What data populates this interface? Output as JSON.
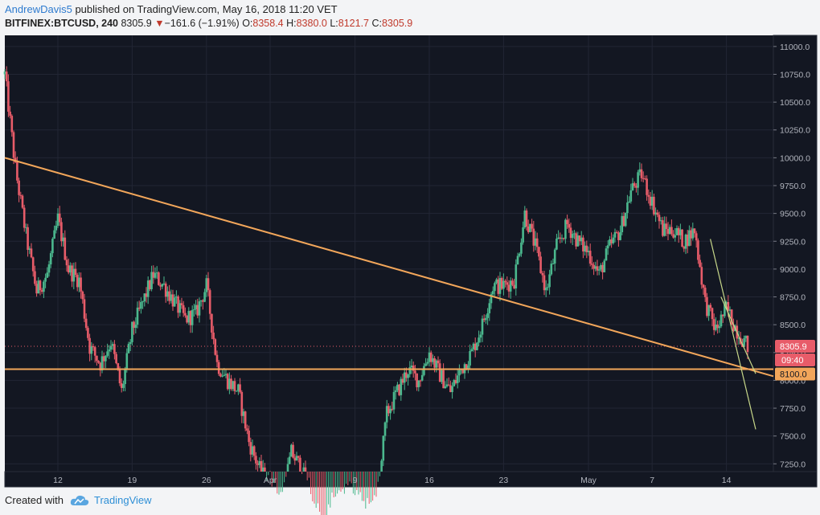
{
  "header": {
    "author": "AndrewDavis5",
    "published_text": " published on TradingView.com, May 16, 2018 11:20 VET",
    "symbol": "BITFINEX:BTCUSD, 240",
    "last": "8305.9",
    "change": "−161.6 (−1.91%)",
    "o_label": "O:",
    "o_value": "8358.4",
    "h_label": "H:",
    "h_value": "8380.0",
    "l_label": "L:",
    "l_value": "8121.7",
    "c_label": "C:",
    "c_value": "8305.9"
  },
  "footer": {
    "created_with": "Created with",
    "brand": "TradingView"
  },
  "colors": {
    "background": "#131722",
    "up": "#4bb88e",
    "down": "#e85c69",
    "trendline": "#f2a65a",
    "channel": "#c8d88a",
    "price_tag": "#e85c69",
    "level_tag": "#f2a65a"
  },
  "chart_data": {
    "type": "candlestick",
    "title": "",
    "ylim": [
      7180,
      11100
    ],
    "y_ticks": [
      11000,
      10750,
      10500,
      10250,
      10000,
      9750,
      9500,
      9250,
      9000,
      8750,
      8500,
      8250,
      8000,
      7750,
      7500,
      7250
    ],
    "y_tick_labels": [
      "11000.0",
      "10750.0",
      "10500.0",
      "10250.0",
      "10000.0",
      "9750.0",
      "9500.0",
      "9250.0",
      "9000.0",
      "8750.0",
      "8500.0",
      "8250.0",
      "8000.0",
      "7750.0",
      "7500.0",
      "7250.0"
    ],
    "x_tick_labels": [
      "12",
      "19",
      "26",
      "Apr",
      "9",
      "16",
      "23",
      "May",
      "7",
      "14"
    ],
    "x_range": [
      "2018-03-07",
      "2018-05-16"
    ],
    "close_points": [
      [
        "2018-03-07",
        10750
      ],
      [
        "2018-03-08",
        9900
      ],
      [
        "2018-03-09",
        9300
      ],
      [
        "2018-03-10",
        8800
      ],
      [
        "2018-03-11",
        8950
      ],
      [
        "2018-03-12",
        9450
      ],
      [
        "2018-03-13",
        9000
      ],
      [
        "2018-03-14",
        8900
      ],
      [
        "2018-03-15",
        8300
      ],
      [
        "2018-03-16",
        8150
      ],
      [
        "2018-03-17",
        8350
      ],
      [
        "2018-03-18",
        7900
      ],
      [
        "2018-03-19",
        8450
      ],
      [
        "2018-03-20",
        8700
      ],
      [
        "2018-03-21",
        8950
      ],
      [
        "2018-03-22",
        8850
      ],
      [
        "2018-03-23",
        8700
      ],
      [
        "2018-03-24",
        8550
      ],
      [
        "2018-03-25",
        8600
      ],
      [
        "2018-03-26",
        8850
      ],
      [
        "2018-03-27",
        8150
      ],
      [
        "2018-03-28",
        8000
      ],
      [
        "2018-03-29",
        7900
      ],
      [
        "2018-03-30",
        7450
      ],
      [
        "2018-03-31",
        7200
      ],
      [
        "2018-04-01",
        7050
      ],
      [
        "2018-04-02",
        6900
      ],
      [
        "2018-04-03",
        7350
      ],
      [
        "2018-04-04",
        7200
      ],
      [
        "2018-04-05",
        6850
      ],
      [
        "2018-04-06",
        6650
      ],
      [
        "2018-04-07",
        6900
      ],
      [
        "2018-04-08",
        7000
      ],
      [
        "2018-04-09",
        6900
      ],
      [
        "2018-04-10",
        6800
      ],
      [
        "2018-04-11",
        6900
      ],
      [
        "2018-04-12",
        7700
      ],
      [
        "2018-04-13",
        7900
      ],
      [
        "2018-04-14",
        8100
      ],
      [
        "2018-04-15",
        8000
      ],
      [
        "2018-04-16",
        8250
      ],
      [
        "2018-04-17",
        8050
      ],
      [
        "2018-04-18",
        7900
      ],
      [
        "2018-04-19",
        8100
      ],
      [
        "2018-04-20",
        8250
      ],
      [
        "2018-04-21",
        8500
      ],
      [
        "2018-04-22",
        8850
      ],
      [
        "2018-04-23",
        8850
      ],
      [
        "2018-04-24",
        8900
      ],
      [
        "2018-04-25",
        9500
      ],
      [
        "2018-04-26",
        9200
      ],
      [
        "2018-04-27",
        8800
      ],
      [
        "2018-04-28",
        9200
      ],
      [
        "2018-04-29",
        9400
      ],
      [
        "2018-04-30",
        9250
      ],
      [
        "2018-05-01",
        9150
      ],
      [
        "2018-05-02",
        8950
      ],
      [
        "2018-05-03",
        9200
      ],
      [
        "2018-05-04",
        9350
      ],
      [
        "2018-05-05",
        9700
      ],
      [
        "2018-05-06",
        9850
      ],
      [
        "2018-05-07",
        9600
      ],
      [
        "2018-05-08",
        9350
      ],
      [
        "2018-05-09",
        9350
      ],
      [
        "2018-05-10",
        9250
      ],
      [
        "2018-05-11",
        9350
      ],
      [
        "2018-05-12",
        8700
      ],
      [
        "2018-05-13",
        8450
      ],
      [
        "2018-05-14",
        8650
      ],
      [
        "2018-05-15",
        8450
      ],
      [
        "2018-05-16",
        8305.9
      ]
    ],
    "horizontal_level": 8100,
    "last_price": 8305.9,
    "price_label": "8305.9",
    "time_label": "09:40",
    "level_label": "8100.0",
    "trendline": {
      "from": [
        "2018-03-07",
        10000
      ],
      "to": [
        "2018-05-16",
        8080
      ]
    },
    "channel_lines": [
      {
        "from": [
          "2018-05-14",
          9270
        ],
        "to": [
          "2018-05-16",
          7560
        ]
      },
      {
        "from": [
          "2018-05-15",
          8750
        ],
        "to": [
          "2018-05-16",
          8060
        ]
      }
    ]
  }
}
